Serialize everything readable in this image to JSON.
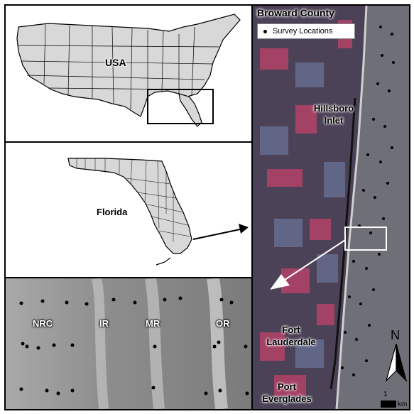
{
  "usa_panel": {
    "label": "USA"
  },
  "florida_panel": {
    "label": "Florida"
  },
  "bathymetry_panel": {
    "labels": [
      "NRC",
      "IR",
      "MR",
      "OR"
    ]
  },
  "satellite_panel": {
    "title": "Broward County",
    "legend": {
      "symbol": "survey-point",
      "label": "Survey Locations"
    },
    "places": [
      "Hillsboro\nInlet",
      "Fort\nLauderdale",
      "Port\nEverglades"
    ]
  },
  "north_arrow": {
    "label": "N"
  },
  "scale_bar": {
    "value": "1",
    "unit": "km"
  },
  "colors": {
    "land": "#d8d8d8",
    "vegetation": "#c2436a",
    "ocean": "#6f6f78",
    "urban": "#6f7fa6",
    "arrow_white": "#ffffff"
  }
}
